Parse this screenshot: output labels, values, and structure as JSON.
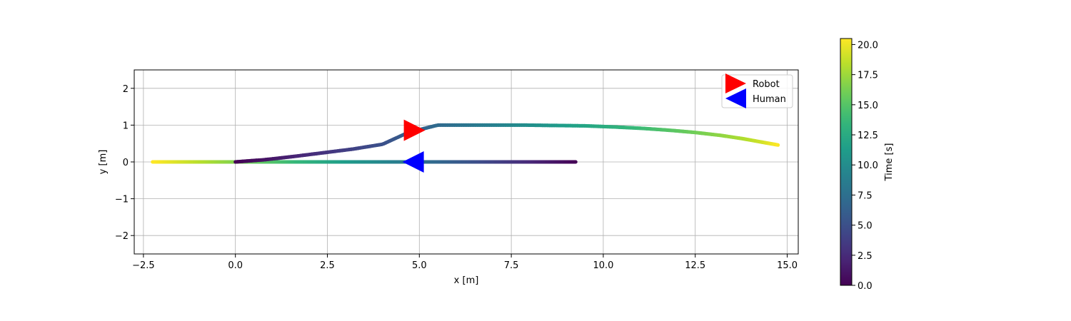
{
  "chart_data": {
    "type": "scatter",
    "xlabel": "x [m]",
    "ylabel": "y [m]",
    "xlim": [
      -2.75,
      15.3
    ],
    "ylim": [
      -2.5,
      2.5
    ],
    "x_ticks": [
      -2.5,
      0.0,
      2.5,
      5.0,
      7.5,
      10.0,
      12.5,
      15.0
    ],
    "x_tick_labels": [
      "−2.5",
      "0.0",
      "2.5",
      "5.0",
      "7.5",
      "10.0",
      "12.5",
      "15.0"
    ],
    "y_ticks": [
      -2,
      -1,
      0,
      1,
      2
    ],
    "y_tick_labels": [
      "−2",
      "−1",
      "0",
      "1",
      "2"
    ],
    "grid": true,
    "colormap": "viridis",
    "colorbar": {
      "label": "Time [s]",
      "range": [
        0.0,
        20.5
      ],
      "ticks": [
        0.0,
        2.5,
        5.0,
        7.5,
        10.0,
        12.5,
        15.0,
        17.5,
        20.0
      ],
      "tick_labels": [
        "0.0",
        "2.5",
        "5.0",
        "7.5",
        "10.0",
        "12.5",
        "15.0",
        "17.5",
        "20.0"
      ]
    },
    "legend": {
      "placement": "top-right",
      "entries": [
        {
          "label": "Robot",
          "color": "#ff0000",
          "marker": "triangle-right"
        },
        {
          "label": "Human",
          "color": "#0000ff",
          "marker": "triangle-left"
        }
      ]
    },
    "series": [
      {
        "name": "Robot",
        "color_by": "time",
        "marker_color": "#ff0000",
        "marker_position": [
          4.85,
          0.86
        ],
        "points": [
          {
            "t": 0.0,
            "x": 0.0,
            "y": 0.0
          },
          {
            "t": 1.0,
            "x": 0.8,
            "y": 0.06
          },
          {
            "t": 2.0,
            "x": 1.6,
            "y": 0.15
          },
          {
            "t": 3.0,
            "x": 2.4,
            "y": 0.25
          },
          {
            "t": 4.0,
            "x": 3.2,
            "y": 0.35
          },
          {
            "t": 5.0,
            "x": 4.0,
            "y": 0.48
          },
          {
            "t": 6.0,
            "x": 4.7,
            "y": 0.8
          },
          {
            "t": 7.0,
            "x": 5.5,
            "y": 1.0
          },
          {
            "t": 8.0,
            "x": 6.3,
            "y": 1.0
          },
          {
            "t": 9.0,
            "x": 7.1,
            "y": 1.0
          },
          {
            "t": 10.0,
            "x": 7.9,
            "y": 1.0
          },
          {
            "t": 11.0,
            "x": 8.7,
            "y": 0.99
          },
          {
            "t": 12.0,
            "x": 9.5,
            "y": 0.98
          },
          {
            "t": 13.0,
            "x": 10.3,
            "y": 0.95
          },
          {
            "t": 14.0,
            "x": 11.1,
            "y": 0.91
          },
          {
            "t": 15.0,
            "x": 11.8,
            "y": 0.86
          },
          {
            "t": 16.0,
            "x": 12.5,
            "y": 0.8
          },
          {
            "t": 17.0,
            "x": 13.2,
            "y": 0.72
          },
          {
            "t": 18.0,
            "x": 13.8,
            "y": 0.63
          },
          {
            "t": 19.0,
            "x": 14.3,
            "y": 0.54
          },
          {
            "t": 20.5,
            "x": 14.75,
            "y": 0.46
          }
        ]
      },
      {
        "name": "Human",
        "color_by": "time",
        "marker_color": "#0000ff",
        "marker_position": [
          4.85,
          0.0
        ],
        "points": [
          {
            "t": 0.0,
            "x": 9.25,
            "y": 0.0
          },
          {
            "t": 20.5,
            "x": -2.25,
            "y": 0.0
          }
        ]
      }
    ]
  }
}
